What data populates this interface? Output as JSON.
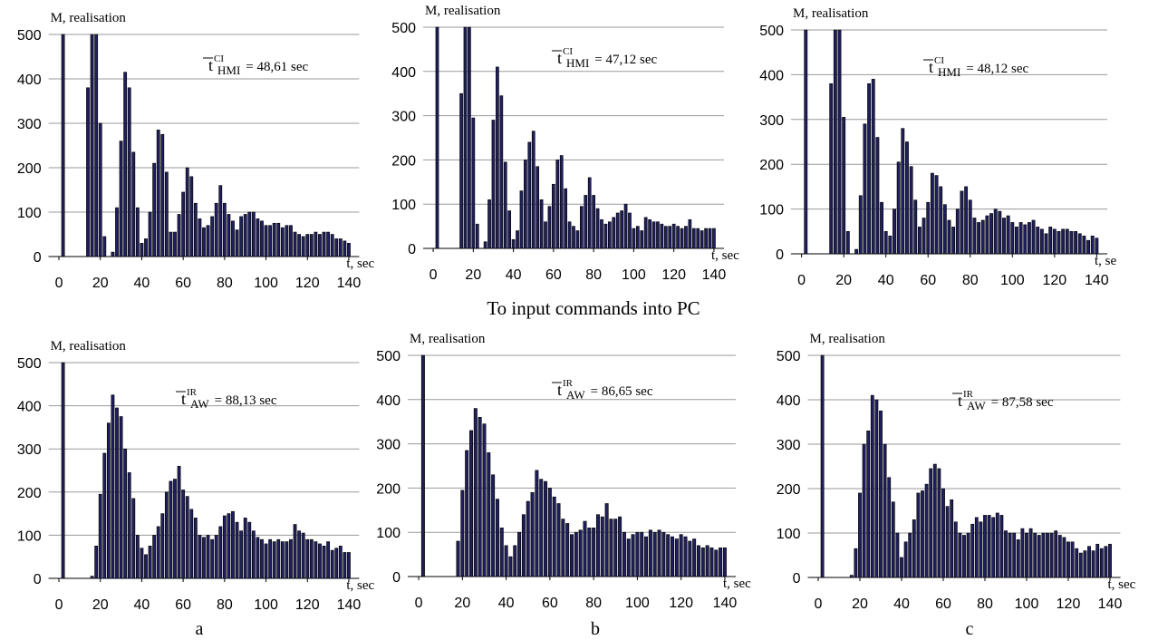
{
  "caption": "To input commands into PC",
  "panel_labels": [
    "a",
    "b",
    "c"
  ],
  "chart_data": [
    {
      "type": "bar",
      "y_label": "M, realisation",
      "x_label": "t, sec",
      "annotation": {
        "base": "t",
        "sup": "CI",
        "sub": "HMI",
        "text": "= 48,61 sec"
      },
      "x": [
        2,
        14,
        16,
        18,
        20,
        22,
        24,
        26,
        28,
        30,
        32,
        34,
        36,
        38,
        40,
        42,
        44,
        46,
        48,
        50,
        52,
        54,
        56,
        58,
        60,
        62,
        64,
        66,
        68,
        70,
        72,
        74,
        76,
        78,
        80,
        82,
        84,
        86,
        88,
        90,
        92,
        94,
        96,
        98,
        100,
        102,
        104,
        106,
        108,
        110,
        112,
        114,
        116,
        118,
        120,
        122,
        124,
        126,
        128,
        130,
        132,
        134,
        136,
        138,
        140
      ],
      "values": [
        500,
        380,
        500,
        500,
        300,
        45,
        0,
        10,
        110,
        260,
        415,
        380,
        235,
        110,
        30,
        40,
        100,
        210,
        285,
        275,
        190,
        55,
        55,
        95,
        145,
        200,
        180,
        120,
        85,
        65,
        70,
        90,
        120,
        160,
        120,
        95,
        80,
        60,
        90,
        95,
        100,
        100,
        85,
        80,
        70,
        70,
        75,
        75,
        65,
        70,
        70,
        55,
        50,
        45,
        50,
        50,
        55,
        50,
        55,
        55,
        50,
        40,
        40,
        35,
        30
      ],
      "color": "#1f1f5c",
      "xlim": [
        -5,
        145
      ],
      "ylim": [
        0,
        500
      ],
      "xticks": [
        0,
        20,
        40,
        60,
        80,
        100,
        120,
        140
      ],
      "yticks": [
        0,
        100,
        200,
        300,
        400,
        500
      ],
      "grid": true
    },
    {
      "type": "bar",
      "y_label": "M, realisation",
      "x_label": "t, sec",
      "annotation": {
        "base": "t",
        "sup": "CI",
        "sub": "HMI",
        "text": "= 47,12 sec"
      },
      "x": [
        2,
        14,
        16,
        18,
        20,
        22,
        24,
        26,
        28,
        30,
        32,
        34,
        36,
        38,
        40,
        42,
        44,
        46,
        48,
        50,
        52,
        54,
        56,
        58,
        60,
        62,
        64,
        66,
        68,
        70,
        72,
        74,
        76,
        78,
        80,
        82,
        84,
        86,
        88,
        90,
        92,
        94,
        96,
        98,
        100,
        102,
        104,
        106,
        108,
        110,
        112,
        114,
        116,
        118,
        120,
        122,
        124,
        126,
        128,
        130,
        132,
        134,
        136,
        138,
        140
      ],
      "values": [
        500,
        350,
        500,
        500,
        295,
        55,
        0,
        15,
        110,
        290,
        410,
        345,
        195,
        85,
        20,
        40,
        130,
        200,
        240,
        265,
        185,
        110,
        60,
        95,
        145,
        200,
        210,
        135,
        60,
        50,
        40,
        95,
        120,
        160,
        120,
        90,
        65,
        55,
        60,
        70,
        80,
        85,
        100,
        80,
        45,
        50,
        40,
        70,
        65,
        60,
        60,
        55,
        50,
        50,
        55,
        50,
        45,
        50,
        65,
        45,
        45,
        40,
        45,
        45,
        45
      ],
      "color": "#1f1f5c",
      "xlim": [
        -5,
        145
      ],
      "ylim": [
        0,
        500
      ],
      "xticks": [
        0,
        20,
        40,
        60,
        80,
        100,
        120,
        140
      ],
      "yticks": [
        0,
        100,
        200,
        300,
        400,
        500
      ],
      "grid": true
    },
    {
      "type": "bar",
      "y_label": "M, realisation",
      "x_label": "t, se",
      "annotation": {
        "base": "t",
        "sup": "CI",
        "sub": "HMI",
        "text": "= 48,12 sec"
      },
      "x": [
        2,
        14,
        16,
        18,
        20,
        22,
        24,
        26,
        28,
        30,
        32,
        34,
        36,
        38,
        40,
        42,
        44,
        46,
        48,
        50,
        52,
        54,
        56,
        58,
        60,
        62,
        64,
        66,
        68,
        70,
        72,
        74,
        76,
        78,
        80,
        82,
        84,
        86,
        88,
        90,
        92,
        94,
        96,
        98,
        100,
        102,
        104,
        106,
        108,
        110,
        112,
        114,
        116,
        118,
        120,
        122,
        124,
        126,
        128,
        130,
        132,
        134,
        136,
        138,
        140
      ],
      "values": [
        500,
        380,
        500,
        500,
        305,
        50,
        0,
        10,
        130,
        290,
        380,
        390,
        260,
        115,
        50,
        40,
        100,
        205,
        280,
        250,
        195,
        120,
        60,
        80,
        115,
        180,
        175,
        150,
        110,
        75,
        60,
        100,
        140,
        150,
        120,
        80,
        70,
        75,
        85,
        90,
        100,
        95,
        80,
        85,
        70,
        60,
        70,
        65,
        70,
        75,
        60,
        55,
        45,
        60,
        55,
        50,
        55,
        55,
        50,
        50,
        45,
        40,
        30,
        40,
        35
      ],
      "color": "#1f1f5c",
      "xlim": [
        -5,
        145
      ],
      "ylim": [
        0,
        500
      ],
      "xticks": [
        0,
        20,
        40,
        60,
        80,
        100,
        120,
        140
      ],
      "yticks": [
        0,
        100,
        200,
        300,
        400,
        500
      ],
      "grid": true
    },
    {
      "type": "bar",
      "y_label": "M, realisation",
      "x_label": "t, sec",
      "annotation": {
        "base": "t",
        "sup": "IR",
        "sub": "AW",
        "text": "= 88,13 sec"
      },
      "x": [
        2,
        16,
        18,
        20,
        22,
        24,
        26,
        28,
        30,
        32,
        34,
        36,
        38,
        40,
        42,
        44,
        46,
        48,
        50,
        52,
        54,
        56,
        58,
        60,
        62,
        64,
        66,
        68,
        70,
        72,
        74,
        76,
        78,
        80,
        82,
        84,
        86,
        88,
        90,
        92,
        94,
        96,
        98,
        100,
        102,
        104,
        106,
        108,
        110,
        112,
        114,
        116,
        118,
        120,
        122,
        124,
        126,
        128,
        130,
        132,
        134,
        136,
        138,
        140
      ],
      "values": [
        500,
        5,
        75,
        195,
        290,
        360,
        425,
        395,
        375,
        300,
        245,
        185,
        100,
        70,
        55,
        75,
        100,
        120,
        150,
        200,
        225,
        230,
        260,
        205,
        190,
        160,
        140,
        100,
        95,
        100,
        90,
        100,
        120,
        145,
        150,
        155,
        130,
        110,
        140,
        130,
        110,
        95,
        90,
        80,
        90,
        85,
        90,
        85,
        85,
        90,
        125,
        110,
        105,
        90,
        90,
        85,
        80,
        75,
        85,
        65,
        70,
        75,
        60,
        60
      ],
      "color": "#1f1f5c",
      "xlim": [
        -5,
        145
      ],
      "ylim": [
        0,
        500
      ],
      "xticks": [
        0,
        20,
        40,
        60,
        80,
        100,
        120,
        140
      ],
      "yticks": [
        0,
        100,
        200,
        300,
        400,
        500
      ],
      "grid": true
    },
    {
      "type": "bar",
      "y_label": "M, realisation",
      "x_label": "t, sec",
      "annotation": {
        "base": "t",
        "sup": "IR",
        "sub": "AW",
        "text": "= 86,65 sec"
      },
      "x": [
        2,
        16,
        18,
        20,
        22,
        24,
        26,
        28,
        30,
        32,
        34,
        36,
        38,
        40,
        42,
        44,
        46,
        48,
        50,
        52,
        54,
        56,
        58,
        60,
        62,
        64,
        66,
        68,
        70,
        72,
        74,
        76,
        78,
        80,
        82,
        84,
        86,
        88,
        90,
        92,
        94,
        96,
        98,
        100,
        102,
        104,
        106,
        108,
        110,
        112,
        114,
        116,
        118,
        120,
        122,
        124,
        126,
        128,
        130,
        132,
        134,
        136,
        138,
        140
      ],
      "values": [
        500,
        0,
        80,
        195,
        285,
        330,
        380,
        360,
        345,
        280,
        230,
        175,
        110,
        70,
        45,
        70,
        100,
        140,
        170,
        190,
        240,
        220,
        215,
        200,
        180,
        165,
        130,
        120,
        95,
        100,
        105,
        125,
        110,
        110,
        140,
        135,
        165,
        130,
        130,
        135,
        100,
        85,
        95,
        100,
        100,
        90,
        105,
        100,
        105,
        100,
        95,
        90,
        85,
        95,
        90,
        80,
        85,
        70,
        65,
        70,
        65,
        60,
        65,
        65
      ],
      "color": "#1f1f5c",
      "xlim": [
        -5,
        145
      ],
      "ylim": [
        0,
        500
      ],
      "xticks": [
        0,
        20,
        40,
        60,
        80,
        100,
        120,
        140
      ],
      "yticks": [
        0,
        100,
        200,
        300,
        400,
        500
      ],
      "grid": true
    },
    {
      "type": "bar",
      "y_label": "M, realisation",
      "x_label": "t, sec",
      "annotation": {
        "base": "t",
        "sup": "IR",
        "sub": "AW",
        "text": "= 87,58 sec"
      },
      "x": [
        2,
        16,
        18,
        20,
        22,
        24,
        26,
        28,
        30,
        32,
        34,
        36,
        38,
        40,
        42,
        44,
        46,
        48,
        50,
        52,
        54,
        56,
        58,
        60,
        62,
        64,
        66,
        68,
        70,
        72,
        74,
        76,
        78,
        80,
        82,
        84,
        86,
        88,
        90,
        92,
        94,
        96,
        98,
        100,
        102,
        104,
        106,
        108,
        110,
        112,
        114,
        116,
        118,
        120,
        122,
        124,
        126,
        128,
        130,
        132,
        134,
        136,
        138,
        140
      ],
      "values": [
        500,
        5,
        65,
        190,
        300,
        330,
        410,
        400,
        375,
        300,
        225,
        170,
        100,
        45,
        80,
        100,
        130,
        190,
        195,
        210,
        245,
        255,
        245,
        200,
        160,
        175,
        125,
        100,
        95,
        100,
        120,
        135,
        125,
        140,
        140,
        135,
        145,
        140,
        105,
        100,
        100,
        85,
        110,
        100,
        110,
        100,
        95,
        100,
        100,
        100,
        105,
        95,
        90,
        80,
        80,
        65,
        55,
        60,
        70,
        60,
        75,
        65,
        70,
        75
      ],
      "color": "#1f1f5c",
      "xlim": [
        -5,
        145
      ],
      "ylim": [
        0,
        500
      ],
      "xticks": [
        0,
        20,
        40,
        60,
        80,
        100,
        120,
        140
      ],
      "yticks": [
        0,
        100,
        200,
        300,
        400,
        500
      ],
      "grid": true
    }
  ]
}
